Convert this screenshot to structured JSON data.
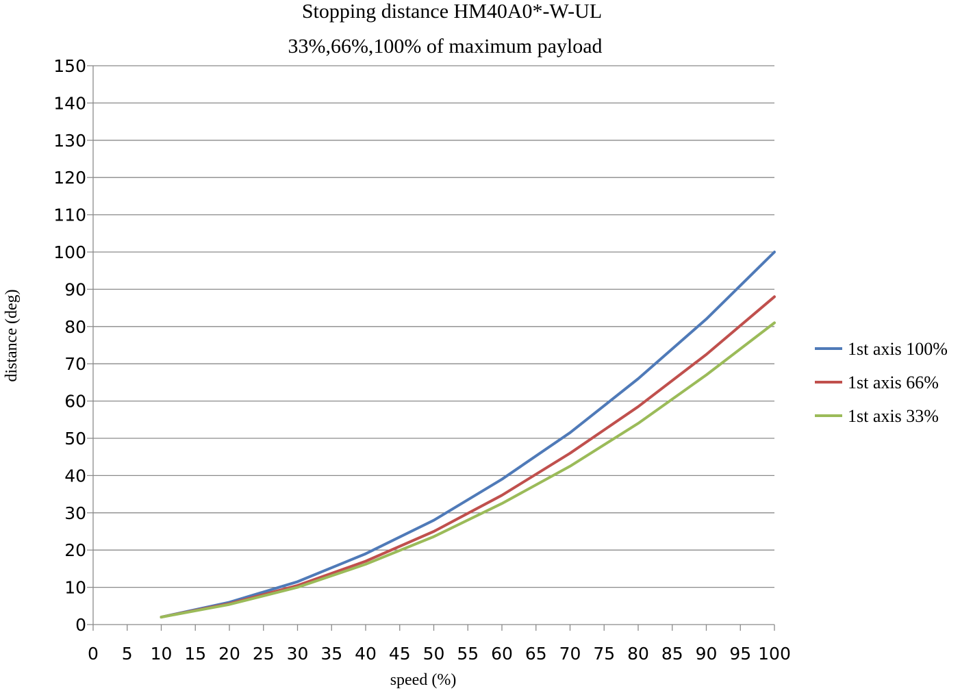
{
  "chart_data": {
    "type": "line",
    "title": "Stopping distance HM40A0*-W-UL",
    "subtitle": "33%,66%,100% of maximum payload",
    "xlabel": "speed (%)",
    "ylabel": "distance (deg)",
    "xlim": [
      0,
      100
    ],
    "ylim": [
      0,
      150
    ],
    "x_ticks": [
      0,
      5,
      10,
      15,
      20,
      25,
      30,
      35,
      40,
      45,
      50,
      55,
      60,
      65,
      70,
      75,
      80,
      85,
      90,
      95,
      100
    ],
    "y_ticks": [
      0,
      10,
      20,
      30,
      40,
      50,
      60,
      70,
      80,
      90,
      100,
      110,
      120,
      130,
      140,
      150
    ],
    "grid": "horizontal",
    "legend_position": "right",
    "x": [
      10,
      20,
      30,
      40,
      50,
      60,
      70,
      80,
      90,
      100
    ],
    "series": [
      {
        "name": "1st axis 100%",
        "color": "#4f7ab8",
        "values": [
          2,
          6,
          11.5,
          19,
          28,
          39,
          51.5,
          66,
          82,
          100
        ]
      },
      {
        "name": "1st axis 66%",
        "color": "#c0504d",
        "values": [
          2,
          5.6,
          10.5,
          17,
          25,
          34.7,
          46,
          58.5,
          72.5,
          88
        ]
      },
      {
        "name": "1st axis 33%",
        "color": "#9bbb59",
        "values": [
          2,
          5.4,
          10,
          16.2,
          23.6,
          32.5,
          42.5,
          54,
          67,
          81
        ]
      }
    ]
  }
}
